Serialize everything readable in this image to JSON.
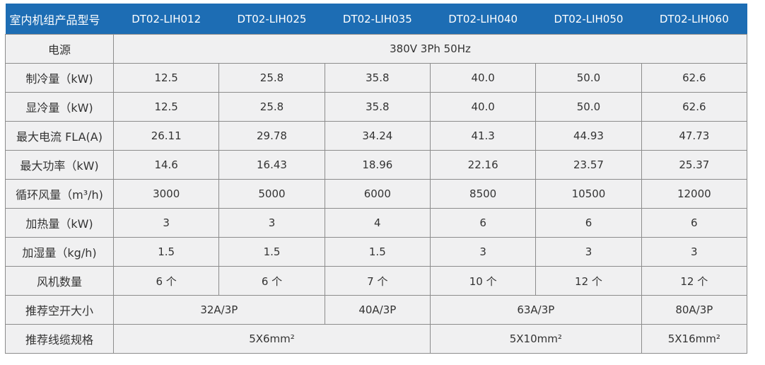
{
  "table": {
    "header": [
      "室内机组产品型号",
      "DT02-LIH012",
      "DT02-LIH025",
      "DT02-LIH035",
      "DT02-LIH040",
      "DT02-LIH050",
      "DT02-LIH060"
    ],
    "rows": [
      {
        "label": "电源",
        "cells": [
          "380V 3Ph 50Hz"
        ]
      },
      {
        "label": "制冷量（kW)",
        "cells": [
          "12.5",
          "25.8",
          "35.8",
          "40.0",
          "50.0",
          "62.6"
        ]
      },
      {
        "label": "显冷量（kW)",
        "cells": [
          "12.5",
          "25.8",
          "35.8",
          "40.0",
          "50.0",
          "62.6"
        ]
      },
      {
        "label": "最大电流 FLA(A)",
        "cells": [
          "26.11",
          "29.78",
          "34.24",
          "41.3",
          "44.93",
          "47.73"
        ]
      },
      {
        "label": "最大功率（kW)",
        "cells": [
          "14.6",
          "16.43",
          "18.96",
          "22.16",
          "23.57",
          "25.37"
        ]
      },
      {
        "label": "循环风量（m³/h)",
        "cells": [
          "3000",
          "5000",
          "6000",
          "8500",
          "10500",
          "12000"
        ]
      },
      {
        "label": "加热量（kW)",
        "cells": [
          "3",
          "3",
          "4",
          "6",
          "6",
          "6"
        ]
      },
      {
        "label": "加湿量（kg/h)",
        "cells": [
          "1.5",
          "1.5",
          "1.5",
          "3",
          "3",
          "3"
        ]
      },
      {
        "label": "风机数量",
        "cells": [
          "6 个",
          "6 个",
          "7 个",
          "10 个",
          "12 个",
          "12 个"
        ]
      },
      {
        "label": "推荐空开大小",
        "cells": [
          "32A/3P",
          "40A/3P",
          "63A/3P",
          "80A/3P"
        ]
      },
      {
        "label": "推荐线缆规格",
        "cells": [
          "5X6mm²",
          "5X10mm²",
          "5X16mm²"
        ]
      }
    ]
  }
}
